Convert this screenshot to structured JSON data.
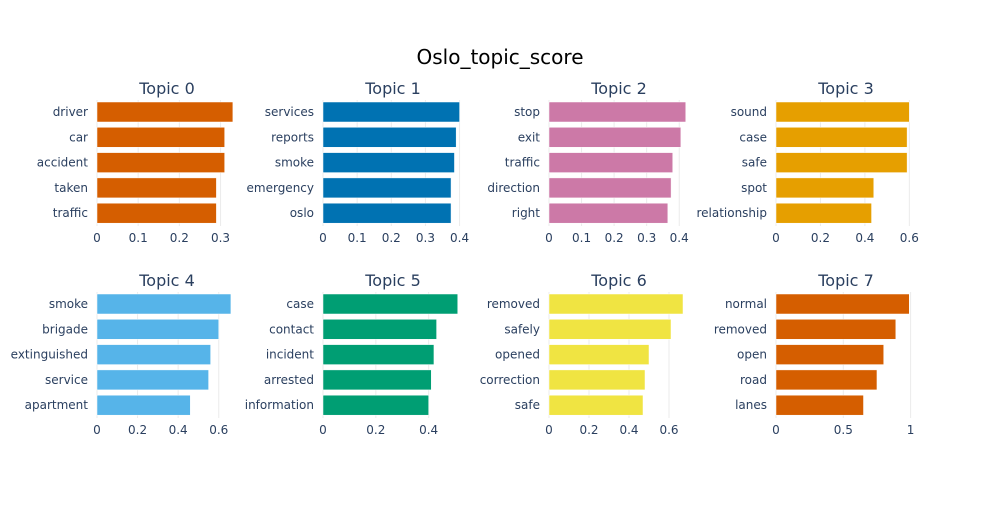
{
  "chart_data": {
    "type": "bar",
    "orientation": "horizontal",
    "title": "Oslo_topic_score",
    "grid": true,
    "subplots": [
      {
        "title": "Topic 0",
        "color": "#D55E00",
        "categories": [
          "driver",
          "car",
          "accident",
          "taken",
          "traffic"
        ],
        "values": [
          0.33,
          0.31,
          0.31,
          0.29,
          0.29
        ],
        "xlim": [
          0,
          0.34
        ],
        "ticks": [
          0,
          0.1,
          0.2,
          0.3
        ],
        "tick_labels": [
          "0",
          "0.1",
          "0.2",
          "0.3"
        ]
      },
      {
        "title": "Topic 1",
        "color": "#0072B2",
        "categories": [
          "services",
          "reports",
          "smoke",
          "emergency",
          "oslo"
        ],
        "values": [
          0.4,
          0.39,
          0.385,
          0.375,
          0.375
        ],
        "xlim": [
          0,
          0.41
        ],
        "ticks": [
          0,
          0.1,
          0.2,
          0.3,
          0.4
        ],
        "tick_labels": [
          "0",
          "0.1",
          "0.2",
          "0.3",
          "0.4"
        ]
      },
      {
        "title": "Topic 2",
        "color": "#CC79A7",
        "categories": [
          "stop",
          "exit",
          "traffic",
          "direction",
          "right"
        ],
        "values": [
          0.42,
          0.405,
          0.38,
          0.375,
          0.365
        ],
        "xlim": [
          0,
          0.43
        ],
        "ticks": [
          0,
          0.1,
          0.2,
          0.3,
          0.4
        ],
        "tick_labels": [
          "0",
          "0.1",
          "0.2",
          "0.3",
          "0.4"
        ]
      },
      {
        "title": "Topic 3",
        "color": "#E69F00",
        "categories": [
          "sound",
          "case",
          "safe",
          "spot",
          "relationship"
        ],
        "values": [
          0.6,
          0.59,
          0.59,
          0.44,
          0.43
        ],
        "xlim": [
          0,
          0.63
        ],
        "ticks": [
          0,
          0.2,
          0.4,
          0.6
        ],
        "tick_labels": [
          "0",
          "0.2",
          "0.4",
          "0.6"
        ]
      },
      {
        "title": "Topic 4",
        "color": "#56B4E9",
        "categories": [
          "smoke",
          "brigade",
          "extinguished",
          "service",
          "apartment"
        ],
        "values": [
          0.66,
          0.6,
          0.56,
          0.55,
          0.46
        ],
        "xlim": [
          0,
          0.69
        ],
        "ticks": [
          0,
          0.2,
          0.4,
          0.6
        ],
        "tick_labels": [
          "0",
          "0.2",
          "0.4",
          "0.6"
        ]
      },
      {
        "title": "Topic 5",
        "color": "#009E73",
        "categories": [
          "case",
          "contact",
          "incident",
          "arrested",
          "information"
        ],
        "values": [
          0.51,
          0.43,
          0.42,
          0.41,
          0.4
        ],
        "xlim": [
          0,
          0.53
        ],
        "ticks": [
          0,
          0.2,
          0.4
        ],
        "tick_labels": [
          "0",
          "0.2",
          "0.4"
        ]
      },
      {
        "title": "Topic 6",
        "color": "#F0E442",
        "categories": [
          "removed",
          "safely",
          "opened",
          "correction",
          "safe"
        ],
        "values": [
          0.67,
          0.61,
          0.5,
          0.48,
          0.47
        ],
        "xlim": [
          0,
          0.7
        ],
        "ticks": [
          0,
          0.2,
          0.4,
          0.6
        ],
        "tick_labels": [
          "0",
          "0.2",
          "0.4",
          "0.6"
        ]
      },
      {
        "title": "Topic 7",
        "color": "#D55E00",
        "categories": [
          "normal",
          "removed",
          "open",
          "road",
          "lanes"
        ],
        "values": [
          0.99,
          0.89,
          0.8,
          0.75,
          0.65
        ],
        "xlim": [
          0,
          1.04
        ],
        "ticks": [
          0,
          0.5,
          1
        ],
        "tick_labels": [
          "0",
          "0.5",
          "1"
        ]
      }
    ]
  }
}
